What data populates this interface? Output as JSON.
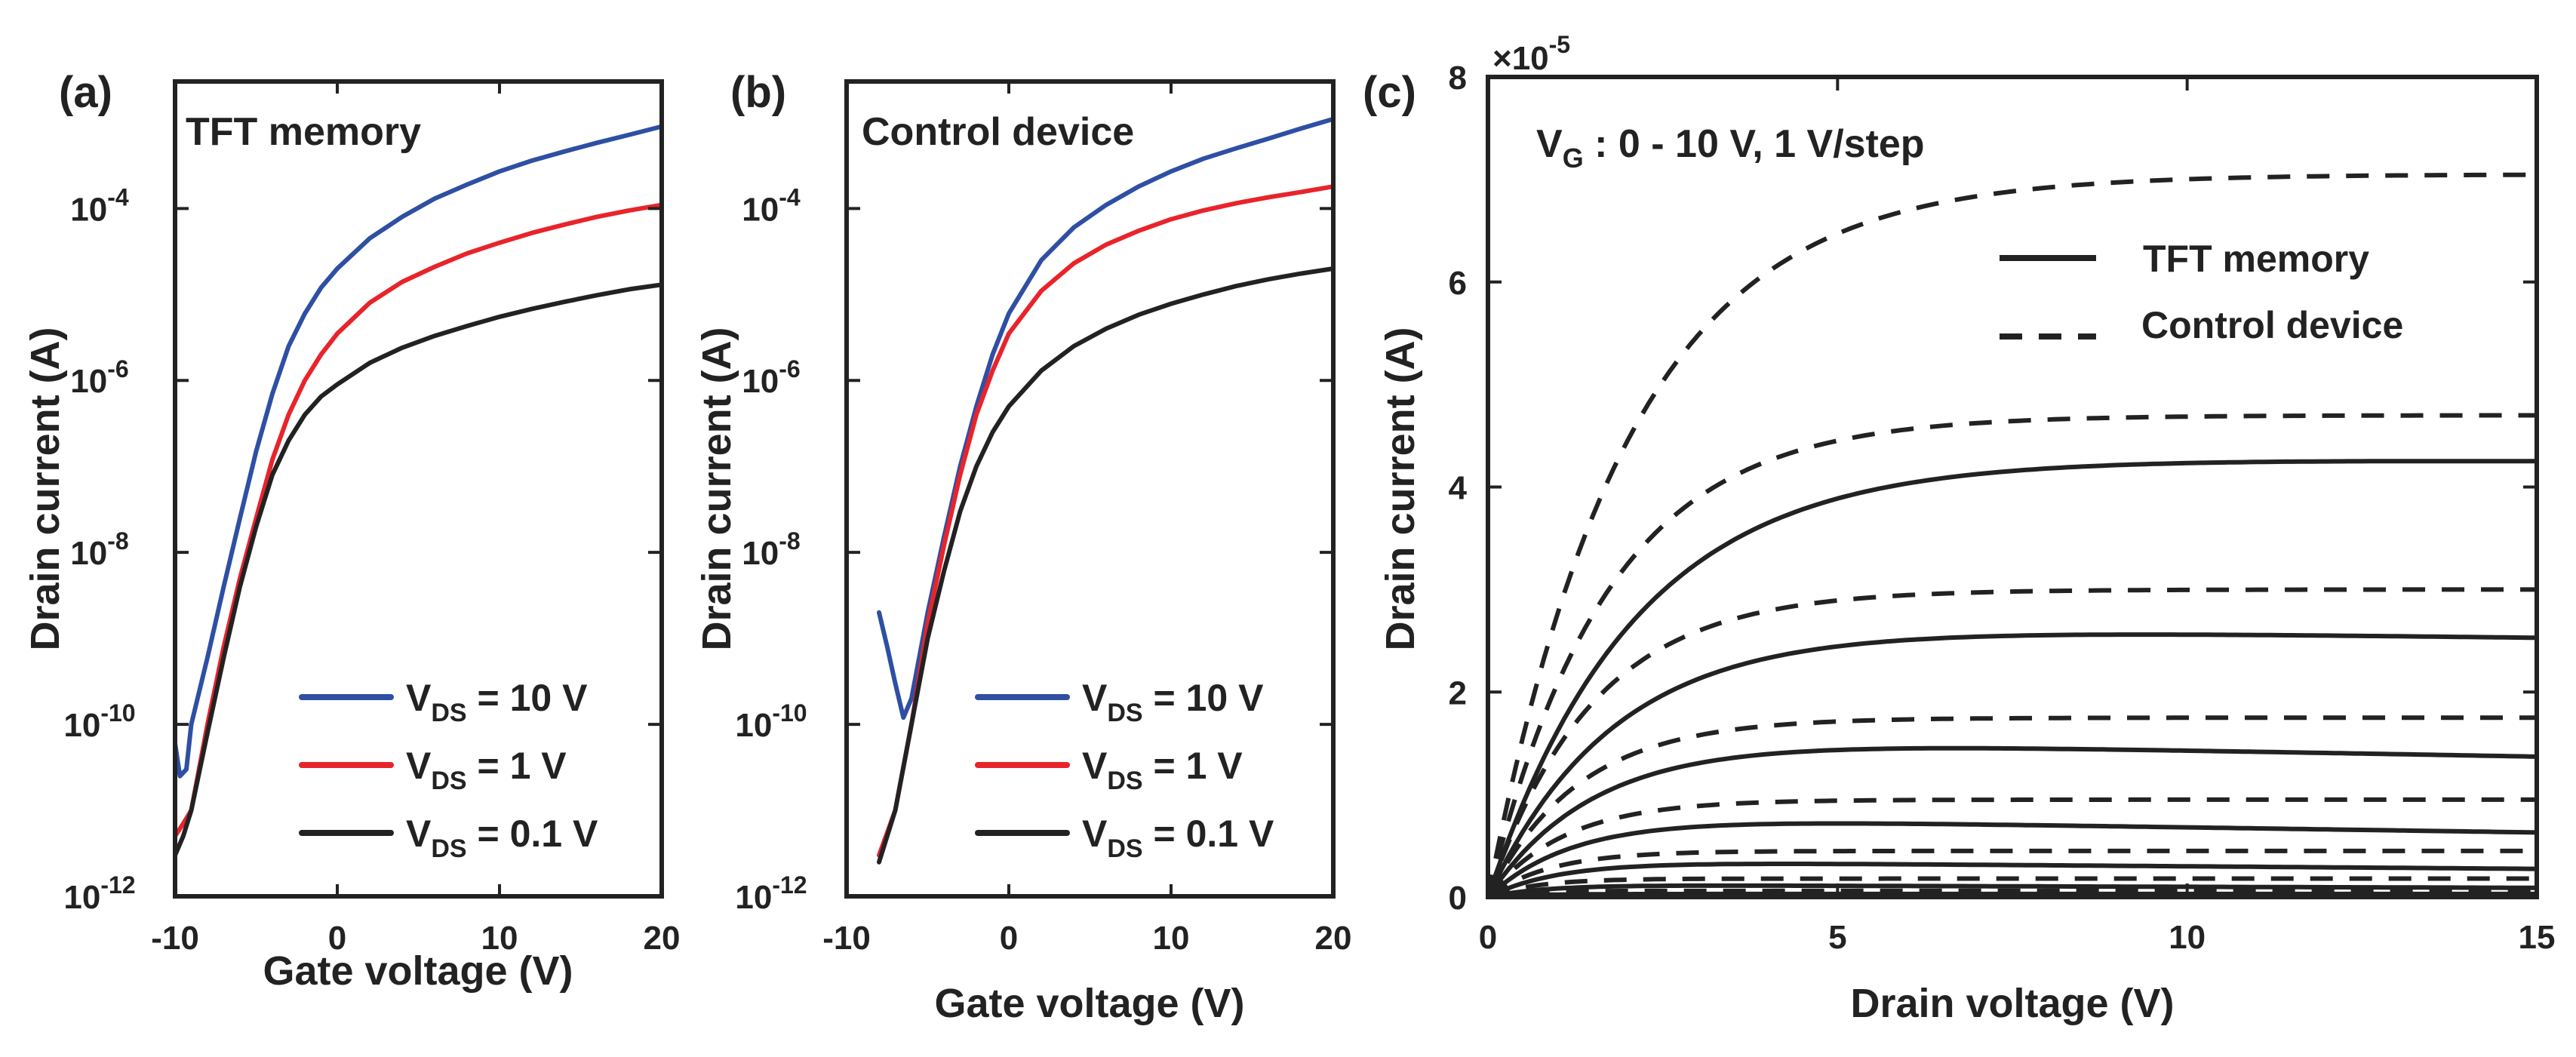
{
  "chart_data": [
    {
      "type": "line",
      "panel_label": "(a)",
      "title": "TFT memory",
      "xlabel": "Gate voltage (V)",
      "ylabel": "Drain current (A)",
      "xscale": "linear",
      "yscale": "log",
      "xlim": [
        -10,
        20
      ],
      "ylim": [
        1e-12,
        0.003
      ],
      "xticks": [
        -10,
        0,
        10,
        20
      ],
      "xtick_labels": [
        "-10",
        "0",
        "10",
        "20"
      ],
      "yticks": [
        1e-12,
        1e-10,
        1e-08,
        1e-06,
        0.0001
      ],
      "ytick_labels": [
        {
          "base": "10",
          "exp": "-12"
        },
        {
          "base": "10",
          "exp": "-10"
        },
        {
          "base": "10",
          "exp": "-8"
        },
        {
          "base": "10",
          "exp": "-6"
        },
        {
          "base": "10",
          "exp": "-4"
        }
      ],
      "legend_position": "bottom-right",
      "series": [
        {
          "name": "V_DS = 10 V",
          "label_main": "V",
          "label_sub": "DS",
          "label_rest": " = 10 V",
          "color": "#2e4fa3",
          "x": [
            -10,
            -9.7,
            -9.3,
            -9,
            -8,
            -7,
            -6,
            -5,
            -4,
            -3,
            -2,
            -1,
            0,
            2,
            4,
            6,
            8,
            10,
            12,
            14,
            16,
            18,
            20
          ],
          "y": [
            6e-11,
            2.5e-11,
            3e-11,
            1e-10,
            6e-10,
            4e-09,
            2.5e-08,
            1.5e-07,
            7e-07,
            2.5e-06,
            6e-06,
            1.2e-05,
            2e-05,
            4.5e-05,
            8e-05,
            0.00013,
            0.00019,
            0.00027,
            0.00036,
            0.00046,
            0.00058,
            0.00072,
            0.0009
          ]
        },
        {
          "name": "V_DS = 1 V",
          "label_main": "V",
          "label_sub": "DS",
          "label_rest": " = 1 V",
          "color": "#e8242b",
          "x": [
            -10,
            -9.5,
            -9,
            -8,
            -7,
            -6,
            -5,
            -4,
            -3,
            -2,
            -1,
            0,
            2,
            4,
            6,
            8,
            10,
            12,
            14,
            16,
            18,
            20
          ],
          "y": [
            5e-12,
            7e-12,
            1e-11,
            1e-10,
            8e-10,
            5e-09,
            2.5e-08,
            1.2e-07,
            4e-07,
            1e-06,
            2e-06,
            3.5e-06,
            8e-06,
            1.4e-05,
            2.1e-05,
            3e-05,
            4e-05,
            5.2e-05,
            6.5e-05,
            8e-05,
            9.5e-05,
            0.00011
          ]
        },
        {
          "name": "V_DS = 0.1 V",
          "label_main": "V",
          "label_sub": "DS",
          "label_rest": " = 0.1 V",
          "color": "#222222",
          "x": [
            -10,
            -9.5,
            -9,
            -8,
            -7,
            -6,
            -5,
            -4,
            -3,
            -2,
            -1,
            0,
            2,
            4,
            6,
            8,
            10,
            12,
            14,
            16,
            18,
            20
          ],
          "y": [
            3e-12,
            5e-12,
            1e-11,
            8e-11,
            6e-10,
            4e-09,
            2e-08,
            8e-08,
            2e-07,
            4e-07,
            6.5e-07,
            9e-07,
            1.6e-06,
            2.4e-06,
            3.3e-06,
            4.3e-06,
            5.5e-06,
            6.8e-06,
            8.2e-06,
            9.8e-06,
            1.15e-05,
            1.3e-05
          ]
        }
      ]
    },
    {
      "type": "line",
      "panel_label": "(b)",
      "title": "Control device",
      "xlabel": "Gate voltage (V)",
      "ylabel": "Drain current (A)",
      "xscale": "linear",
      "yscale": "log",
      "xlim": [
        -10,
        20
      ],
      "ylim": [
        1e-12,
        0.003
      ],
      "xticks": [
        -10,
        0,
        10,
        20
      ],
      "xtick_labels": [
        "-10",
        "0",
        "10",
        "20"
      ],
      "yticks": [
        1e-12,
        1e-10,
        1e-08,
        1e-06,
        0.0001
      ],
      "ytick_labels": [
        {
          "base": "10",
          "exp": "-12"
        },
        {
          "base": "10",
          "exp": "-10"
        },
        {
          "base": "10",
          "exp": "-8"
        },
        {
          "base": "10",
          "exp": "-6"
        },
        {
          "base": "10",
          "exp": "-4"
        }
      ],
      "legend_position": "bottom-right",
      "series": [
        {
          "name": "V_DS = 10 V",
          "label_main": "V",
          "label_sub": "DS",
          "label_rest": " = 10 V",
          "color": "#2e4fa3",
          "x": [
            -8,
            -7.5,
            -7,
            -6.5,
            -6,
            -5,
            -4,
            -3,
            -2,
            -1,
            0,
            2,
            4,
            6,
            8,
            10,
            12,
            14,
            16,
            18,
            20
          ],
          "y": [
            2e-09,
            8e-10,
            3e-10,
            1.2e-10,
            2e-10,
            2e-09,
            1.5e-08,
            1e-07,
            5e-07,
            2e-06,
            6e-06,
            2.5e-05,
            6e-05,
            0.00011,
            0.00018,
            0.00027,
            0.00038,
            0.0005,
            0.00065,
            0.00085,
            0.0011
          ]
        },
        {
          "name": "V_DS = 1 V",
          "label_main": "V",
          "label_sub": "DS",
          "label_rest": " = 1 V",
          "color": "#e8242b",
          "x": [
            -8,
            -7,
            -6,
            -5,
            -4,
            -3,
            -2,
            -1,
            0,
            2,
            4,
            6,
            8,
            10,
            12,
            14,
            16,
            18,
            20
          ],
          "y": [
            3e-12,
            1e-11,
            1e-10,
            1.5e-09,
            1.2e-08,
            8e-08,
            4e-07,
            1.3e-06,
            3.5e-06,
            1.1e-05,
            2.3e-05,
            3.8e-05,
            5.5e-05,
            7.5e-05,
            9.5e-05,
            0.000115,
            0.000135,
            0.000155,
            0.00018
          ]
        },
        {
          "name": "V_DS = 0.1 V",
          "label_main": "V",
          "label_sub": "DS",
          "label_rest": " = 0.1 V",
          "color": "#222222",
          "x": [
            -8,
            -7,
            -6,
            -5,
            -4,
            -3,
            -2,
            -1,
            0,
            2,
            4,
            6,
            8,
            10,
            12,
            14,
            16,
            18,
            20
          ],
          "y": [
            2.5e-12,
            1e-11,
            1e-10,
            1e-09,
            6e-09,
            3e-08,
            1e-07,
            2.5e-07,
            5e-07,
            1.3e-06,
            2.5e-06,
            4e-06,
            5.8e-06,
            7.8e-06,
            1e-05,
            1.25e-05,
            1.5e-05,
            1.75e-05,
            2e-05
          ]
        }
      ]
    },
    {
      "type": "line",
      "panel_label": "(c)",
      "annotation": {
        "main": "V",
        "sub": "G",
        "rest": " : 0 - 10 V, 1 V/step"
      },
      "xlabel": "Drain voltage (V)",
      "ylabel": "Drain current (A)",
      "xlim": [
        0,
        15
      ],
      "ylim": [
        0,
        8
      ],
      "y_multiplier": {
        "base": "×10",
        "exp": "-5"
      },
      "xticks": [
        0,
        5,
        10,
        15
      ],
      "xtick_labels": [
        "0",
        "5",
        "10",
        "15"
      ],
      "yticks": [
        0,
        2,
        4,
        6,
        8
      ],
      "ytick_labels": [
        "0",
        "2",
        "4",
        "6",
        "8"
      ],
      "legend_position": "top-right",
      "legend": [
        {
          "label": "TFT memory",
          "style": "solid"
        },
        {
          "label": "Control device",
          "style": "dashed"
        }
      ],
      "curve_model": "I = Isat * (1 - exp(-Vd / Vk)) - slope * Vd, values in units of 1e-5 A",
      "series": [
        {
          "name": "Control device",
          "style": "dashed",
          "curves": [
            {
              "Isat": 7.05,
              "Vk": 2.0,
              "slope": 0
            },
            {
              "Isat": 4.7,
              "Vk": 1.7,
              "slope": 0
            },
            {
              "Isat": 3.0,
              "Vk": 1.5,
              "slope": 0
            },
            {
              "Isat": 1.75,
              "Vk": 1.3,
              "slope": 0
            },
            {
              "Isat": 0.95,
              "Vk": 1.1,
              "slope": 0
            },
            {
              "Isat": 0.45,
              "Vk": 0.9,
              "slope": 0
            },
            {
              "Isat": 0.18,
              "Vk": 0.7,
              "slope": 0
            },
            {
              "Isat": 0.06,
              "Vk": 0.5,
              "slope": 0
            }
          ]
        },
        {
          "name": "TFT memory",
          "style": "solid",
          "curves": [
            {
              "Isat": 4.3,
              "Vk": 2.1,
              "slope": 0.003
            },
            {
              "Isat": 2.65,
              "Vk": 1.8,
              "slope": 0.008
            },
            {
              "Isat": 1.55,
              "Vk": 1.5,
              "slope": 0.012
            },
            {
              "Isat": 0.78,
              "Vk": 1.2,
              "slope": 0.01
            },
            {
              "Isat": 0.35,
              "Vk": 1.0,
              "slope": 0.005
            },
            {
              "Isat": 0.12,
              "Vk": 0.8,
              "slope": 0.002
            },
            {
              "Isat": 0.03,
              "Vk": 0.6,
              "slope": 0
            }
          ]
        }
      ]
    }
  ]
}
